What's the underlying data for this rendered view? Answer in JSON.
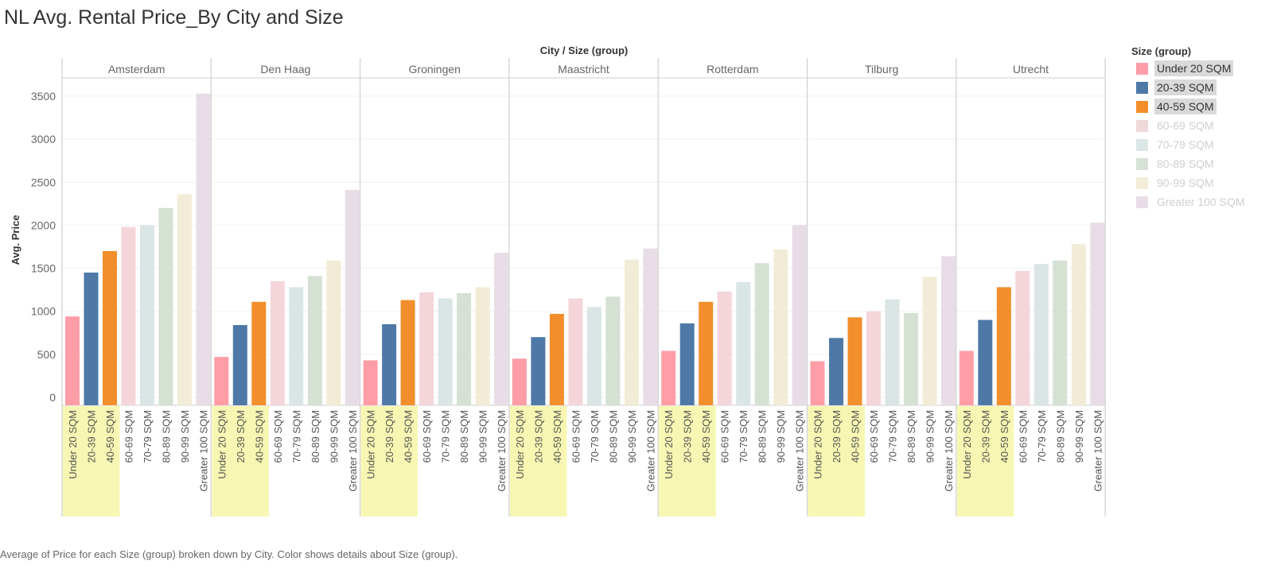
{
  "title": "NL Avg. Rental Price_By City and Size",
  "caption": "Average of Price for each Size (group) broken down by City.  Color shows details about Size (group).",
  "chart_data": {
    "type": "bar",
    "column_header": "City  /  Size (group)",
    "ylabel": "Avg. Price",
    "ylim": [
      0,
      3750
    ],
    "y_ticks": [
      0,
      500,
      1000,
      1500,
      2000,
      2500,
      3000,
      3500
    ],
    "grid": true,
    "legend_placement": "right",
    "legend_title": "Size (group)",
    "categories": [
      "Under 20 SQM",
      "20-39 SQM",
      "40-59 SQM",
      "60-69 SQM",
      "70-79 SQM",
      "80-89 SQM",
      "90-99 SQM",
      "Greater 100 SQM"
    ],
    "selected_categories": [
      "Under 20 SQM",
      "20-39 SQM",
      "40-59 SQM"
    ],
    "colors": [
      "#ff9da7",
      "#4e79a7",
      "#f28e2b",
      "#f4d6da",
      "#d9e6e5",
      "#d4e1d3",
      "#f2ecd6",
      "#e8dde6"
    ],
    "legend_colors": [
      "#ff9da7",
      "#4e79a7",
      "#f28e2b",
      "#f0d7da",
      "#dbe7e6",
      "#d6e2d5",
      "#f3edd7",
      "#e9dee7"
    ],
    "panes": [
      {
        "city": "Amsterdam",
        "values": [
          940,
          1450,
          1700,
          1980,
          2000,
          2200,
          2360,
          3530
        ]
      },
      {
        "city": "Den Haag",
        "values": [
          470,
          840,
          1110,
          1350,
          1280,
          1410,
          1590,
          2410
        ]
      },
      {
        "city": "Groningen",
        "values": [
          430,
          850,
          1130,
          1220,
          1150,
          1210,
          1280,
          1680
        ]
      },
      {
        "city": "Maastricht",
        "values": [
          450,
          700,
          970,
          1150,
          1050,
          1170,
          1600,
          1730
        ]
      },
      {
        "city": "Rotterdam",
        "values": [
          540,
          860,
          1110,
          1230,
          1340,
          1560,
          1720,
          2000
        ]
      },
      {
        "city": "Tilburg",
        "values": [
          420,
          690,
          930,
          1000,
          1140,
          980,
          1400,
          1640
        ]
      },
      {
        "city": "Utrecht",
        "values": [
          540,
          900,
          1280,
          1470,
          1550,
          1590,
          1780,
          2030
        ]
      }
    ]
  }
}
